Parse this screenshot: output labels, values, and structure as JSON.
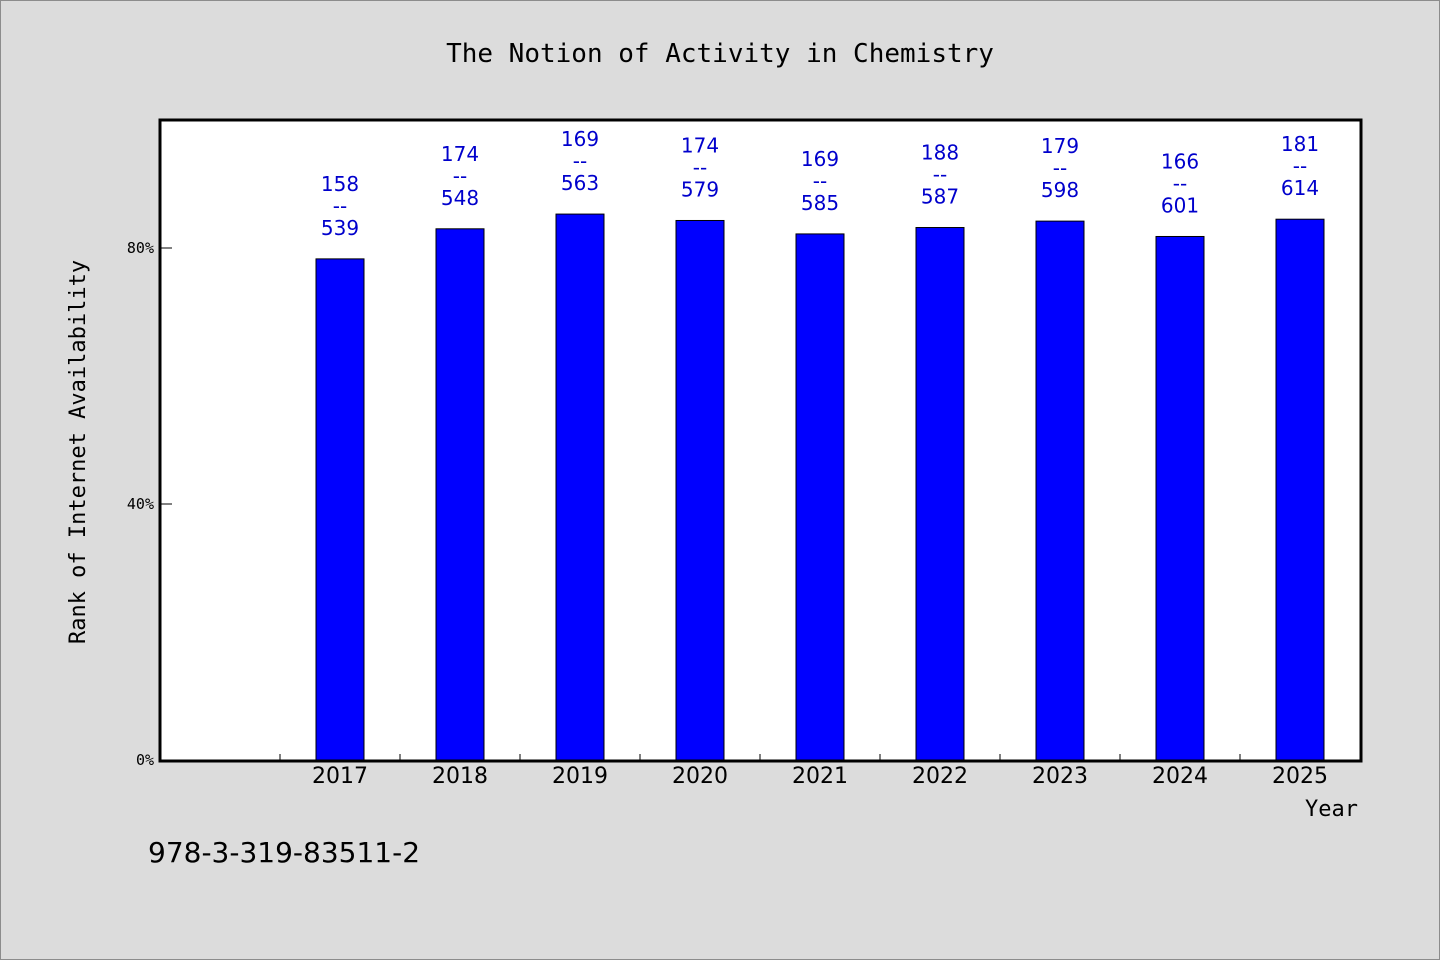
{
  "chart_data": {
    "type": "bar",
    "title": "The Notion of Activity in Chemistry",
    "xlabel": "Year",
    "ylabel": "Rank of Internet Availability",
    "categories": [
      "2017",
      "2018",
      "2019",
      "2020",
      "2021",
      "2022",
      "2023",
      "2024",
      "2025"
    ],
    "values": [
      78.3,
      83.0,
      85.3,
      84.3,
      82.2,
      83.2,
      84.2,
      81.8,
      84.5
    ],
    "value_unit": "%",
    "ylim": [
      0,
      100
    ],
    "yticks": [
      0,
      40,
      80
    ],
    "ytick_labels": [
      "0%",
      "40%",
      "80%"
    ],
    "data_labels": [
      {
        "top": "158",
        "sep": "--",
        "bottom": "539"
      },
      {
        "top": "174",
        "sep": "--",
        "bottom": "548"
      },
      {
        "top": "169",
        "sep": "--",
        "bottom": "563"
      },
      {
        "top": "174",
        "sep": "--",
        "bottom": "579"
      },
      {
        "top": "169",
        "sep": "--",
        "bottom": "585"
      },
      {
        "top": "188",
        "sep": "--",
        "bottom": "587"
      },
      {
        "top": "179",
        "sep": "--",
        "bottom": "598"
      },
      {
        "top": "166",
        "sep": "--",
        "bottom": "601"
      },
      {
        "top": "181",
        "sep": "--",
        "bottom": "614"
      }
    ],
    "bar_color": "#0000ff",
    "label_color": "#0000cc",
    "grid": false,
    "legend": "none"
  },
  "footer_code": "978-3-319-83511-2",
  "colors": {
    "background": "#dcdcdc",
    "plot_background": "#ffffff"
  }
}
